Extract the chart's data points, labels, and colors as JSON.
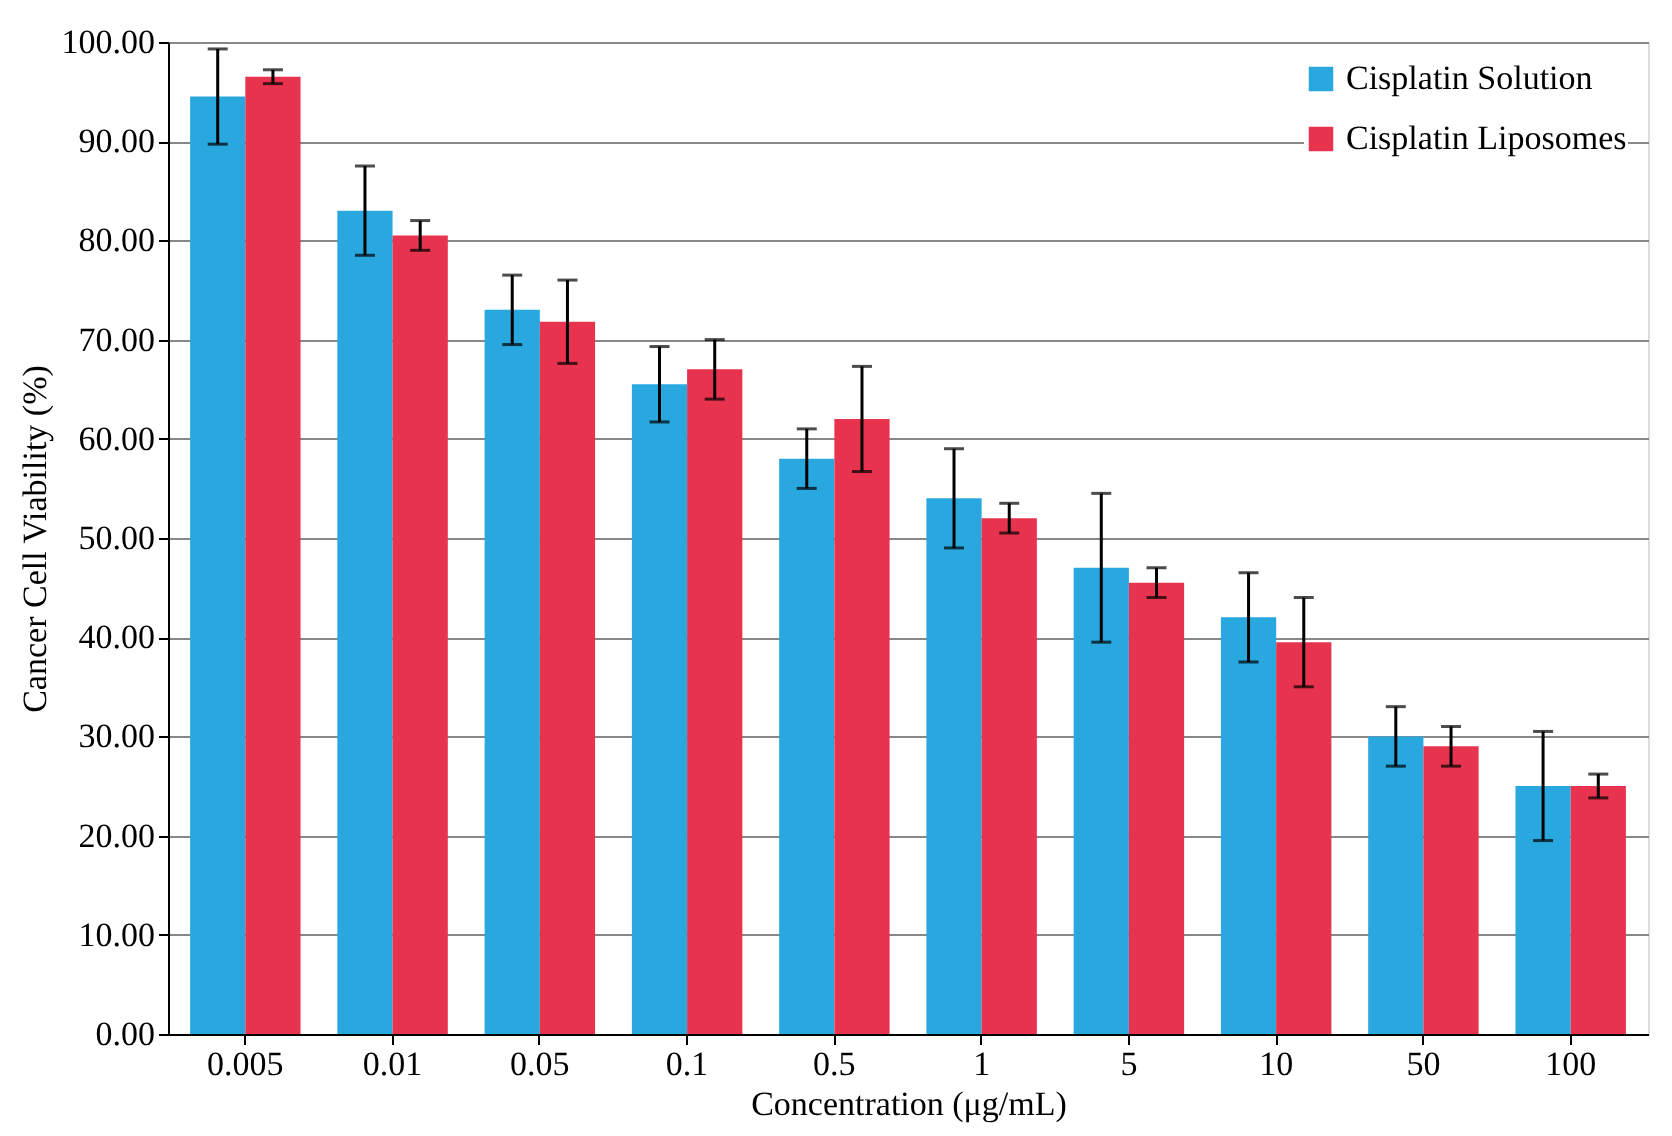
{
  "chart_data": {
    "type": "bar",
    "xlabel": "Concentration  (μg/mL)",
    "ylabel": "Cancer Cell  Viability   (%)",
    "categories": [
      "0.005",
      "0.01",
      "0.05",
      "0.1",
      "0.5",
      "1",
      "5",
      "10",
      "50",
      "100"
    ],
    "series": [
      {
        "name": "Cisplatin Solution",
        "color": "#29a8e0",
        "values": [
          94.5,
          83,
          73,
          65.5,
          58,
          54,
          47,
          42,
          30,
          25
        ],
        "errors": [
          4.8,
          4.5,
          3.5,
          3.8,
          3,
          5,
          7.5,
          4.5,
          3,
          5.5
        ]
      },
      {
        "name": "Cisplatin Liposomes",
        "color": "#e8334f",
        "values": [
          96.5,
          80.5,
          71.8,
          67,
          62,
          52,
          45.5,
          39.5,
          29,
          25
        ],
        "errors": [
          0.7,
          1.5,
          4.2,
          3,
          5.3,
          1.5,
          1.5,
          4.5,
          2,
          1.2
        ]
      }
    ],
    "ylim": [
      0,
      100
    ],
    "yticks": [
      {
        "value": 0,
        "label": "0.00"
      },
      {
        "value": 10,
        "label": "10.00"
      },
      {
        "value": 20,
        "label": "20.00"
      },
      {
        "value": 30,
        "label": "30.00"
      },
      {
        "value": 40,
        "label": "40.00"
      },
      {
        "value": 50,
        "label": "50.00"
      },
      {
        "value": 60,
        "label": "60.00"
      },
      {
        "value": 70,
        "label": "70.00"
      },
      {
        "value": 80,
        "label": "80.00"
      },
      {
        "value": 90,
        "label": "90.00"
      },
      {
        "value": 100,
        "label": "100.00"
      }
    ],
    "grid": "y",
    "legend": "top right"
  }
}
